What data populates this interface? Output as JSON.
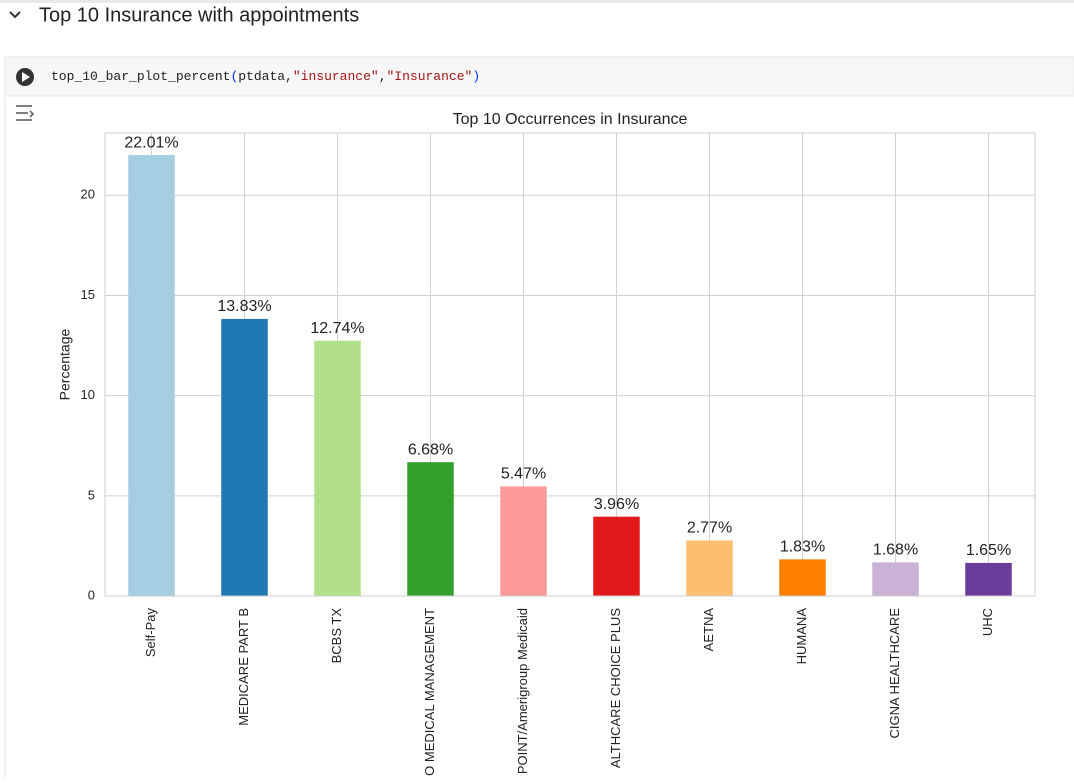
{
  "section_title": "Top 10 Insurance with appointments",
  "code": {
    "tokens": [
      {
        "text": "top_10_bar_plot_percent",
        "color": "#212121"
      },
      {
        "text": "(",
        "color": "#0431fa"
      },
      {
        "text": "ptdata,",
        "color": "#212121"
      },
      {
        "text": "\"insurance\"",
        "color": "#a31515"
      },
      {
        "text": ",",
        "color": "#212121"
      },
      {
        "text": "\"Insurance\"",
        "color": "#a31515"
      },
      {
        "text": ")",
        "color": "#0431fa"
      }
    ]
  },
  "chart_data": {
    "type": "bar",
    "title": "Top 10 Occurrences in Insurance",
    "y_label": "Percentage",
    "categories": [
      "Self-Pay",
      "MEDICARE PART B",
      "BCBS  TX",
      "O MEDICAL MANAGEMENT",
      "POINT/Amerigroup Medicaid",
      "ALTHCARE CHOICE PLUS",
      "AETNA",
      "HUMANA",
      "CIGNA HEALTHCARE",
      "UHC"
    ],
    "values": [
      22.01,
      13.83,
      12.74,
      6.68,
      5.47,
      3.96,
      2.77,
      1.83,
      1.68,
      1.65
    ],
    "value_labels": [
      "22.01%",
      "13.83%",
      "12.74%",
      "6.68%",
      "5.47%",
      "3.96%",
      "2.77%",
      "1.83%",
      "1.68%",
      "1.65%"
    ],
    "colors": [
      "#a6cee3",
      "#1f78b4",
      "#b2df8a",
      "#33a02c",
      "#fb9a99",
      "#e31a1c",
      "#fdbf6f",
      "#ff7f00",
      "#cab2d6",
      "#6a3d9a"
    ],
    "ylim": [
      0,
      23.11
    ],
    "yticks": [
      0,
      5,
      10,
      15,
      20
    ],
    "grid": true
  }
}
